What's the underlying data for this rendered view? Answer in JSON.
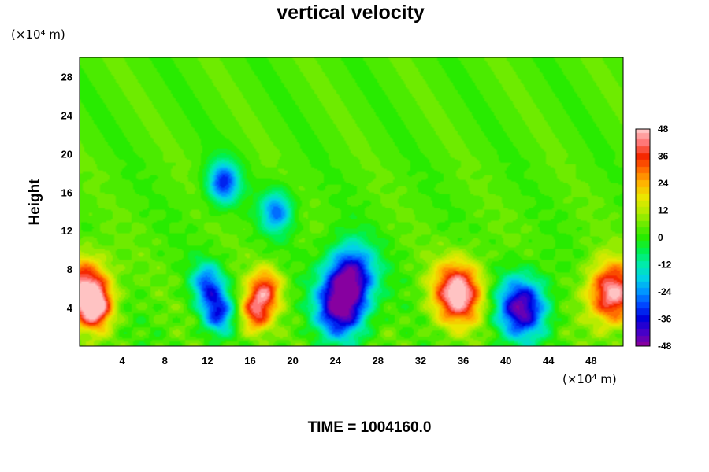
{
  "chart_data": {
    "type": "heatmap",
    "title": "vertical velocity",
    "ylabel": "Height",
    "x_unit": "(×10⁴ m)",
    "y_unit": "(×10⁴ m)",
    "xlim": [
      0,
      51
    ],
    "ylim": [
      0,
      30
    ],
    "x_ticks": [
      4,
      8,
      12,
      16,
      20,
      24,
      28,
      32,
      36,
      40,
      44,
      48
    ],
    "y_ticks": [
      4,
      8,
      12,
      16,
      20,
      24,
      28
    ],
    "colorbar": {
      "min": -48,
      "max": 48,
      "ticks": [
        48,
        36,
        24,
        12,
        0,
        -12,
        -24,
        -36,
        -48
      ]
    },
    "features": [
      {
        "x": 0.5,
        "y": 6.0,
        "value": 42
      },
      {
        "x": 1.5,
        "y": 4.0,
        "value": 35
      },
      {
        "x": 12.0,
        "y": 6.5,
        "value": -30
      },
      {
        "x": 13.0,
        "y": 3.5,
        "value": -34
      },
      {
        "x": 13.5,
        "y": 17.0,
        "value": -36
      },
      {
        "x": 18.5,
        "y": 14.0,
        "value": -30
      },
      {
        "x": 17.5,
        "y": 6.0,
        "value": 30
      },
      {
        "x": 16.5,
        "y": 3.5,
        "value": 32
      },
      {
        "x": 24.5,
        "y": 4.0,
        "value": -48
      },
      {
        "x": 25.5,
        "y": 7.5,
        "value": -42
      },
      {
        "x": 35.5,
        "y": 5.5,
        "value": 48
      },
      {
        "x": 41.5,
        "y": 4.0,
        "value": -48
      },
      {
        "x": 50.0,
        "y": 5.5,
        "value": 45
      }
    ]
  },
  "footer": {
    "time_label": "TIME = 1004160.0"
  }
}
